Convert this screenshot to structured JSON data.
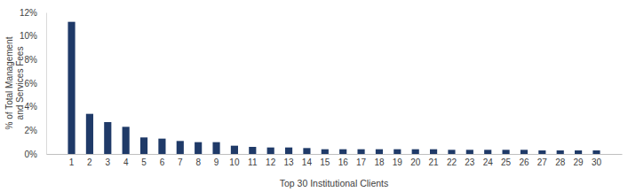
{
  "chart_data": {
    "type": "bar",
    "x_label": "Top 30 Institutional Clients",
    "y_label": [
      "% of Total Management",
      "and Services Fees"
    ],
    "categories": [
      "1",
      "2",
      "3",
      "4",
      "5",
      "6",
      "7",
      "8",
      "9",
      "10",
      "11",
      "12",
      "13",
      "14",
      "15",
      "16",
      "17",
      "18",
      "19",
      "20",
      "21",
      "22",
      "23",
      "24",
      "25",
      "26",
      "27",
      "28",
      "29",
      "30"
    ],
    "values": [
      11.2,
      3.4,
      2.7,
      2.3,
      1.4,
      1.3,
      1.1,
      1.0,
      1.0,
      0.7,
      0.6,
      0.55,
      0.55,
      0.5,
      0.4,
      0.4,
      0.4,
      0.4,
      0.4,
      0.4,
      0.4,
      0.35,
      0.35,
      0.35,
      0.35,
      0.35,
      0.3,
      0.3,
      0.3,
      0.3
    ],
    "color": "#1f3a68",
    "ylim": [
      0,
      12
    ],
    "yticks": [
      {
        "value": 0,
        "label": "0%"
      },
      {
        "value": 2,
        "label": "2%"
      },
      {
        "value": 4,
        "label": "4%"
      },
      {
        "value": 6,
        "label": "6%"
      },
      {
        "value": 8,
        "label": "8%"
      },
      {
        "value": 10,
        "label": "10%"
      },
      {
        "value": 12,
        "label": "12%"
      }
    ],
    "grid": false
  }
}
